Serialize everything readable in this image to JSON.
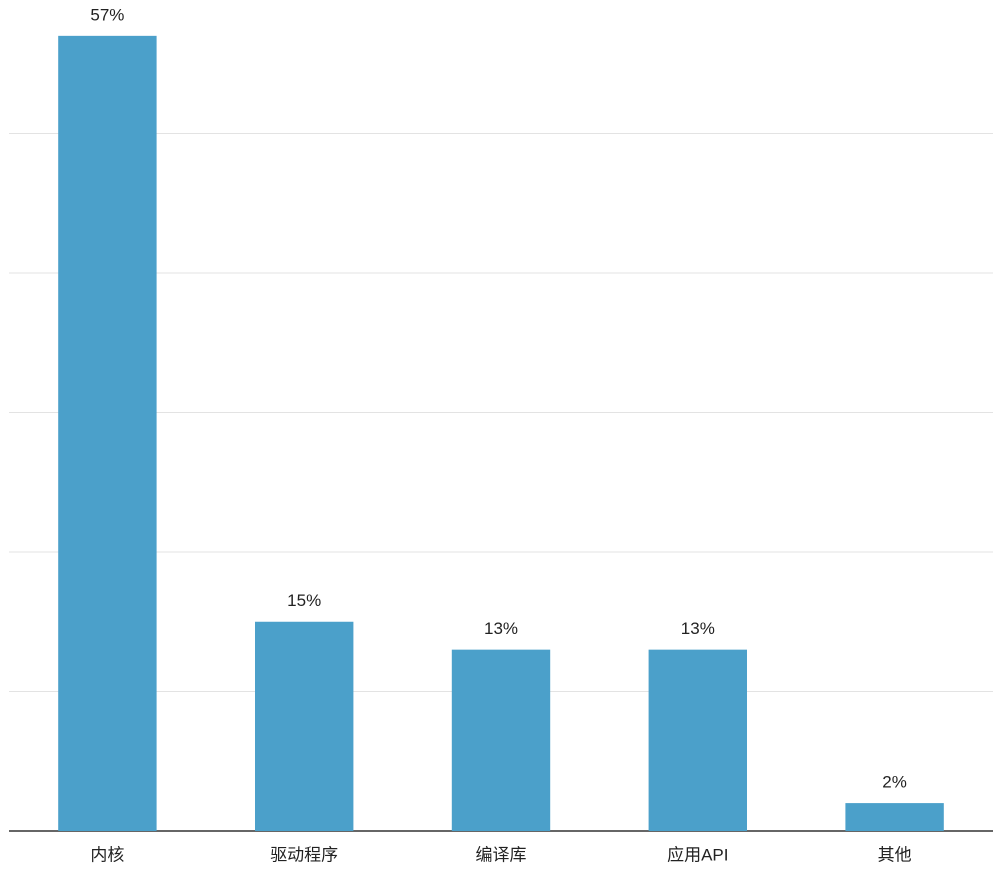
{
  "chart_data": {
    "type": "bar",
    "categories": [
      "内核",
      "驱动程序",
      "编译库",
      "应用API",
      "其他"
    ],
    "values": [
      57,
      15,
      13,
      13,
      2
    ],
    "value_labels": [
      "57%",
      "15%",
      "13%",
      "13%",
      "2%"
    ],
    "color": "#4ba0ca",
    "ylim": [
      0,
      60
    ],
    "yticks": [
      10,
      20,
      30,
      40,
      50
    ],
    "grid": true
  }
}
